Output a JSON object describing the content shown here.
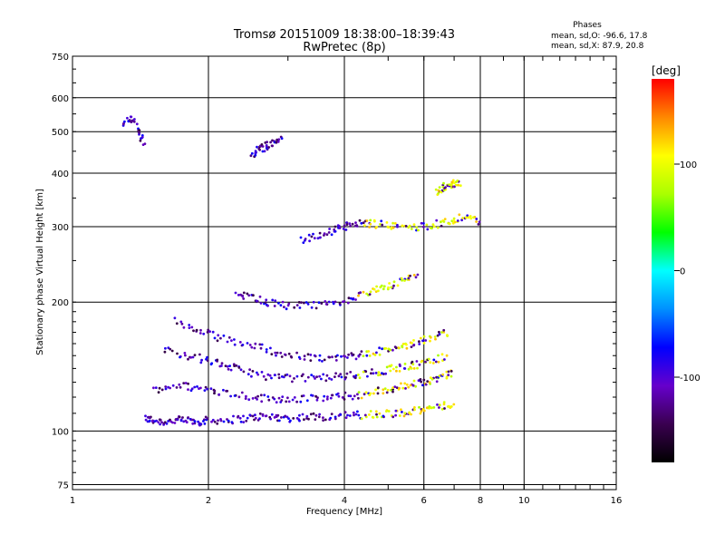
{
  "chart_data": {
    "type": "scatter",
    "title": "Tromsø 20151009 18:38:00–18:39:43",
    "subtitle": "RwPretec (8p)",
    "xlabel": "Frequency [MHz]",
    "ylabel": "Stationary phase Virtual Height [km]",
    "x_scale": "log",
    "y_scale": "log",
    "xlim": [
      1,
      16
    ],
    "ylim": [
      73,
      750
    ],
    "x_ticks": [
      1,
      2,
      4,
      6,
      8,
      10,
      16
    ],
    "y_ticks": [
      75,
      100,
      200,
      300,
      400,
      500,
      600,
      750
    ],
    "grid": true,
    "stats": {
      "heading": "Phases",
      "line1": "mean, sd,O: -96.6, 17.8",
      "line2": "mean, sd,X:  87.9, 20.8"
    },
    "colorbar": {
      "label": "[deg]",
      "range": [
        -180,
        180
      ],
      "ticks": [
        100,
        0,
        -100
      ],
      "colors": [
        "#000000",
        "#3a0050",
        "#6600cc",
        "#0000ff",
        "#0090ff",
        "#00ffff",
        "#00ff00",
        "#aaff00",
        "#ffff00",
        "#ff8800",
        "#ff0000"
      ]
    },
    "traces": [
      {
        "name": "",
        "x": [
          1.45,
          1.5,
          1.6,
          1.7,
          1.8,
          1.9,
          2.0,
          2.2,
          2.4,
          2.6,
          2.8,
          3.0,
          3.3,
          3.6,
          4.0,
          4.4,
          4.8,
          5.2,
          5.6,
          6.0,
          6.5,
          7.0
        ],
        "y": [
          107,
          106,
          105,
          106,
          106,
          105,
          106,
          106,
          107,
          108,
          108,
          107,
          108,
          108,
          109,
          109,
          110,
          110,
          111,
          112,
          114,
          116
        ]
      },
      {
        "name": "",
        "x": [
          1.5,
          1.7,
          1.9,
          2.1,
          2.4,
          2.7,
          3.0,
          3.4,
          3.8,
          4.2,
          4.6,
          5.0,
          5.4,
          5.8,
          6.2,
          6.6,
          7.0
        ],
        "y": [
          125,
          128,
          126,
          124,
          121,
          119,
          119,
          119,
          120,
          121,
          123,
          125,
          127,
          129,
          131,
          134,
          137
        ]
      },
      {
        "name": "",
        "x": [
          1.6,
          1.8,
          2.0,
          2.2,
          2.4,
          2.7,
          3.0,
          3.4,
          3.8,
          4.2,
          4.6,
          5.0,
          5.4,
          5.8,
          6.2,
          6.8
        ],
        "y": [
          155,
          150,
          146,
          142,
          138,
          134,
          133,
          133,
          134,
          135,
          137,
          139,
          141,
          143,
          146,
          150
        ]
      },
      {
        "name": "",
        "x": [
          1.7,
          1.9,
          2.1,
          2.4,
          2.7,
          3.0,
          3.4,
          3.8,
          4.2,
          4.6,
          5.0,
          5.4,
          5.8,
          6.3,
          6.8
        ],
        "y": [
          180,
          172,
          165,
          160,
          155,
          150,
          148,
          148,
          150,
          152,
          155,
          158,
          162,
          166,
          170
        ]
      },
      {
        "name": "",
        "x": [
          2.3,
          2.5,
          2.7,
          3.0,
          3.4,
          3.8,
          4.2,
          4.6,
          5.0,
          5.4,
          5.8
        ],
        "y": [
          210,
          205,
          200,
          196,
          196,
          198,
          205,
          212,
          218,
          225,
          232
        ]
      },
      {
        "name": "",
        "x": [
          3.2,
          3.5,
          3.8,
          4.0,
          4.3,
          4.6,
          5.0,
          5.4,
          6.0,
          6.5,
          7.0,
          7.5,
          8.0
        ],
        "y": [
          280,
          285,
          295,
          300,
          305,
          305,
          302,
          300,
          300,
          305,
          310,
          318,
          305
        ]
      },
      {
        "name": "",
        "x": [
          2.5,
          2.6,
          2.7,
          2.8,
          2.9
        ],
        "y": [
          440,
          455,
          465,
          470,
          480
        ]
      },
      {
        "name": "",
        "x": [
          6.4,
          6.6,
          6.8,
          7.0,
          7.2
        ],
        "y": [
          360,
          370,
          375,
          378,
          380
        ]
      },
      {
        "name": "",
        "x": [
          1.3,
          1.35,
          1.4,
          1.45
        ],
        "y": [
          520,
          540,
          500,
          470
        ]
      }
    ]
  }
}
